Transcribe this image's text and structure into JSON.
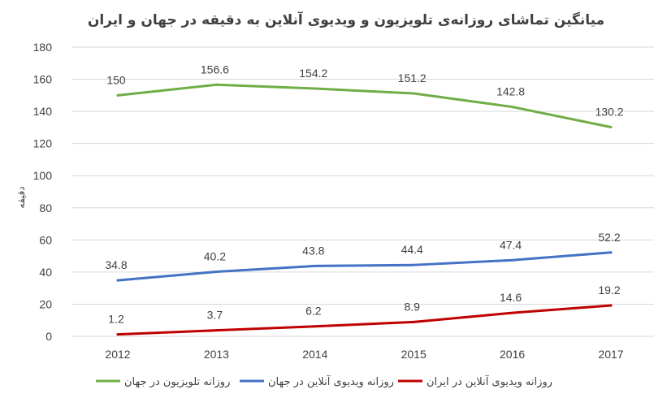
{
  "chart_data": {
    "type": "line",
    "title": "میانگین تماشای روزانه‌ی تلویزیون و ویدیوی آنلاین به دقیقه در جهان و ایران",
    "xlabel": "",
    "ylabel": "دقیقه",
    "categories": [
      "2012",
      "2013",
      "2014",
      "2015",
      "2016",
      "2017"
    ],
    "ylim": [
      0,
      180
    ],
    "yticks": [
      0,
      20,
      40,
      60,
      80,
      100,
      120,
      140,
      160,
      180
    ],
    "grid": true,
    "legend_position": "bottom",
    "series": [
      {
        "name": "روزانه تلویزیون در جهان",
        "color": "#70ad47",
        "values": [
          150,
          156.6,
          154.2,
          151.2,
          142.8,
          130.2
        ],
        "labels": [
          "150",
          "156.6",
          "154.2",
          "151.2",
          "142.8",
          "130.2"
        ]
      },
      {
        "name": "روزانه ویدیوی آنلاین در جهان",
        "color": "#4472c4",
        "values": [
          34.8,
          40.2,
          43.8,
          44.4,
          47.4,
          52.2
        ],
        "labels": [
          "34.8",
          "40.2",
          "43.8",
          "44.4",
          "47.4",
          "52.2"
        ]
      },
      {
        "name": "روزانه ویدیوی آنلاین در ایران",
        "color": "#c00000",
        "values": [
          1.2,
          3.7,
          6.2,
          8.9,
          14.6,
          19.2
        ],
        "labels": [
          "1.2",
          "3.7",
          "6.2",
          "8.9",
          "14.6",
          "19.2"
        ]
      }
    ]
  }
}
